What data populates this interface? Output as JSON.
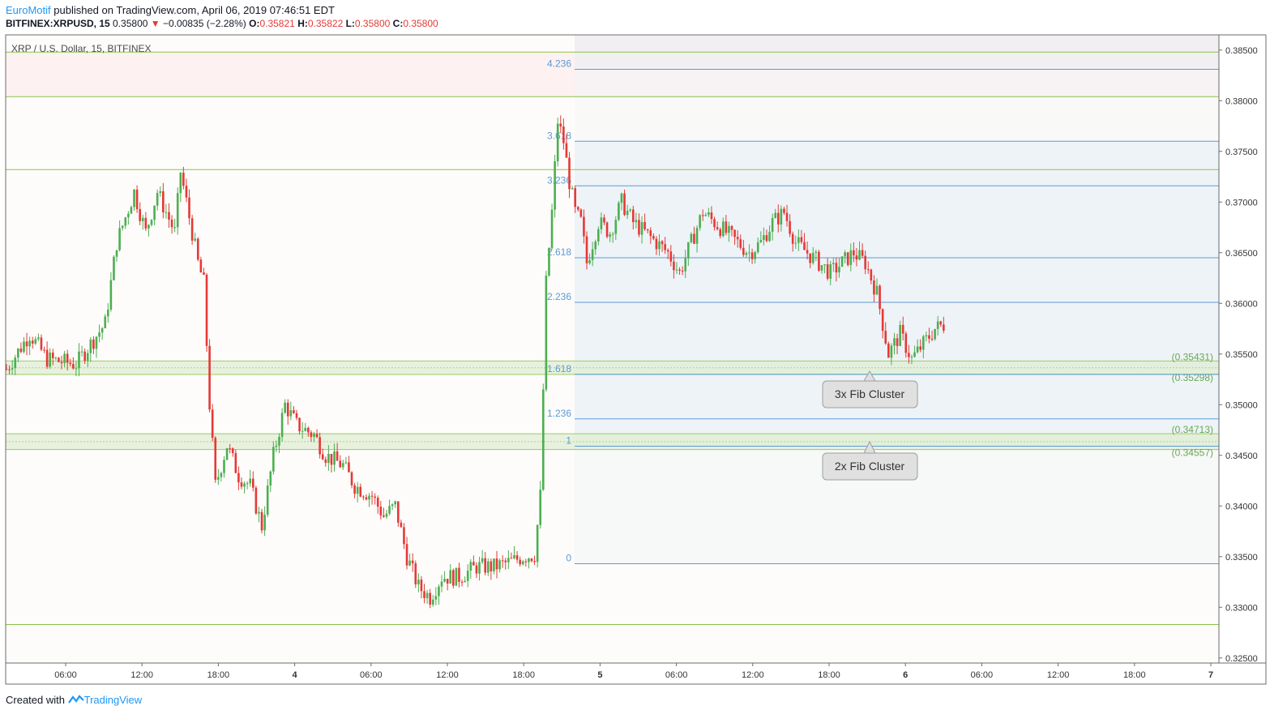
{
  "header": {
    "brand": "EuroMotif",
    "published": " published on TradingView.com, April 06, 2019 07:46:51 EDT",
    "symbol": "BITFINEX:XRPUSD, 15",
    "last": "0.35800",
    "change": "−0.00835 (−2.28%)",
    "o_label": "O:",
    "o_val": "0.35821",
    "h_label": "H:",
    "h_val": "0.35822",
    "l_label": "L:",
    "l_val": "0.35800",
    "c_label": "C:",
    "c_val": "0.35800"
  },
  "legend": "XRP / U.S. Dollar, 15, BITFINEX",
  "footer": {
    "created": "Created with",
    "brand": "TradingView"
  },
  "annotations": [
    {
      "text": "3x Fib Cluster"
    },
    {
      "text": "2x Fib Cluster"
    }
  ],
  "colors": {
    "up": "#4caf50",
    "down": "#e53935",
    "fib": "#5b9bd5",
    "hline": "#8bc34a"
  },
  "chart_data": {
    "type": "candlestick",
    "y_range": [
      0.3245,
      0.3865
    ],
    "y_ticks": [
      "0.38500",
      "0.38000",
      "0.37500",
      "0.37000",
      "0.36500",
      "0.36000",
      "0.35500",
      "0.35000",
      "0.34500",
      "0.34000",
      "0.33500",
      "0.33000",
      "0.32500"
    ],
    "x_ticks": [
      "06:00",
      "12:00",
      "18:00",
      "4",
      "06:00",
      "12:00",
      "18:00",
      "5",
      "06:00",
      "12:00",
      "18:00",
      "6",
      "06:00",
      "12:00",
      "18:00",
      "7"
    ],
    "fib_levels": [
      {
        "label": "4.236",
        "price": 0.3831
      },
      {
        "label": "3.618",
        "price": 0.376
      },
      {
        "label": "3.236",
        "price": 0.3716
      },
      {
        "label": "2.618",
        "price": 0.3645
      },
      {
        "label": "2.236",
        "price": 0.3601
      },
      {
        "label": "1.618",
        "price": 0.353
      },
      {
        "label": "1.236",
        "price": 0.3486
      },
      {
        "label": "1",
        "price": 0.3459
      },
      {
        "label": "0",
        "price": 0.3343
      }
    ],
    "horizontal_lines": [
      0.3848,
      0.3804,
      0.3732,
      0.3283
    ],
    "cluster_zones": [
      {
        "top": 0.35431,
        "bottom": 0.35298,
        "top_label": "(0.35431)",
        "bottom_label": "(0.35298)"
      },
      {
        "top": 0.34713,
        "bottom": 0.34557,
        "top_label": "(0.34713)",
        "bottom_label": "(0.34557)"
      }
    ],
    "price_path": [
      [
        0,
        0.3535
      ],
      [
        8,
        0.357
      ],
      [
        14,
        0.3545
      ],
      [
        24,
        0.354
      ],
      [
        34,
        0.358
      ],
      [
        38,
        0.366
      ],
      [
        44,
        0.371
      ],
      [
        48,
        0.367
      ],
      [
        52,
        0.371
      ],
      [
        58,
        0.367
      ],
      [
        60,
        0.373
      ],
      [
        62,
        0.37
      ],
      [
        64,
        0.367
      ],
      [
        66,
        0.364
      ],
      [
        68,
        0.362
      ],
      [
        70,
        0.35
      ],
      [
        72,
        0.342
      ],
      [
        76,
        0.346
      ],
      [
        80,
        0.343
      ],
      [
        84,
        0.342
      ],
      [
        88,
        0.338
      ],
      [
        92,
        0.345
      ],
      [
        96,
        0.35
      ],
      [
        100,
        0.348
      ],
      [
        106,
        0.347
      ],
      [
        110,
        0.345
      ],
      [
        116,
        0.344
      ],
      [
        120,
        0.342
      ],
      [
        126,
        0.341
      ],
      [
        130,
        0.339
      ],
      [
        134,
        0.34
      ],
      [
        138,
        0.335
      ],
      [
        142,
        0.332
      ],
      [
        146,
        0.331
      ],
      [
        150,
        0.333
      ],
      [
        156,
        0.333
      ],
      [
        162,
        0.334
      ],
      [
        168,
        0.334
      ],
      [
        174,
        0.3345
      ],
      [
        178,
        0.335
      ],
      [
        182,
        0.3352
      ],
      [
        184,
        0.341
      ],
      [
        186,
        0.362
      ],
      [
        188,
        0.369
      ],
      [
        190,
        0.378
      ],
      [
        192,
        0.376
      ],
      [
        194,
        0.372
      ],
      [
        196,
        0.369
      ],
      [
        198,
        0.368
      ],
      [
        200,
        0.364
      ],
      [
        204,
        0.368
      ],
      [
        208,
        0.367
      ],
      [
        212,
        0.37
      ],
      [
        216,
        0.368
      ],
      [
        220,
        0.367
      ],
      [
        224,
        0.366
      ],
      [
        228,
        0.365
      ],
      [
        232,
        0.363
      ],
      [
        236,
        0.366
      ],
      [
        240,
        0.369
      ],
      [
        244,
        0.368
      ],
      [
        248,
        0.367
      ],
      [
        252,
        0.366
      ],
      [
        256,
        0.365
      ],
      [
        260,
        0.366
      ],
      [
        264,
        0.368
      ],
      [
        268,
        0.369
      ],
      [
        272,
        0.366
      ],
      [
        276,
        0.365
      ],
      [
        280,
        0.364
      ],
      [
        284,
        0.363
      ],
      [
        288,
        0.364
      ],
      [
        292,
        0.365
      ],
      [
        296,
        0.364
      ],
      [
        300,
        0.361
      ],
      [
        304,
        0.355
      ],
      [
        308,
        0.357
      ],
      [
        312,
        0.3545
      ],
      [
        316,
        0.356
      ],
      [
        320,
        0.3575
      ],
      [
        324,
        0.358
      ]
    ]
  }
}
